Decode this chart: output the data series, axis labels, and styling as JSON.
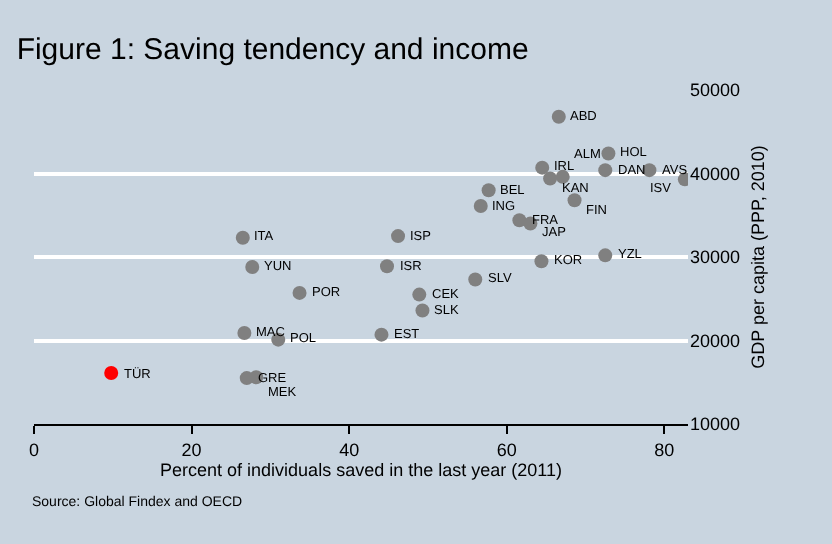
{
  "chart_data": {
    "type": "scatter",
    "title": "Figure 1: Saving tendency and income",
    "xlabel": "Percent of individuals saved in the last year (2011)",
    "ylabel": "GDP per capita (PPP, 2010)",
    "annotations": [
      "Source: Global Findex and OECD",
      {
        "text": "TÜR",
        "x": 9.8,
        "y": 16100
      },
      {
        "text": "GRE",
        "x": 27,
        "y": 15500
      },
      {
        "text": "MEK",
        "x": 28.2,
        "y": 15600
      },
      {
        "text": "MAC",
        "x": 26.7,
        "y": 20900
      },
      {
        "text": "POL",
        "x": 31,
        "y": 20100
      },
      {
        "text": "POR",
        "x": 33.7,
        "y": 25700
      },
      {
        "text": "YUN",
        "x": 27.7,
        "y": 28800
      },
      {
        "text": "ITA",
        "x": 26.5,
        "y": 32300
      },
      {
        "text": "ISP",
        "x": 46.2,
        "y": 32500
      },
      {
        "text": "ISR",
        "x": 44.8,
        "y": 28900
      },
      {
        "text": "EST",
        "x": 44.1,
        "y": 20700
      },
      {
        "text": "CEK",
        "x": 48.9,
        "y": 25500
      },
      {
        "text": "SLK",
        "x": 49.3,
        "y": 23600
      },
      {
        "text": "SLV",
        "x": 56,
        "y": 27300
      },
      {
        "text": "BEL",
        "x": 57.7,
        "y": 38000
      },
      {
        "text": "ING",
        "x": 56.7,
        "y": 36100
      },
      {
        "text": "FRA",
        "x": 61.6,
        "y": 34400
      },
      {
        "text": "JAP",
        "x": 63,
        "y": 34000
      },
      {
        "text": "KOR",
        "x": 64.4,
        "y": 29500
      },
      {
        "text": "ABD",
        "x": 66.6,
        "y": 46800
      },
      {
        "text": "IRL",
        "x": 64.5,
        "y": 40700
      },
      {
        "text": "KAN",
        "x": 65.5,
        "y": 39400
      },
      {
        "text": "ALM",
        "x": 67.1,
        "y": 39600
      },
      {
        "text": "HOL",
        "x": 72.9,
        "y": 42400
      },
      {
        "text": "DAN",
        "x": 72.5,
        "y": 40400
      },
      {
        "text": "YZL",
        "x": 72.5,
        "y": 30200
      },
      {
        "text": "FIN",
        "x": 68.6,
        "y": 36800
      },
      {
        "text": "AVS",
        "x": 78.1,
        "y": 40400
      },
      {
        "text": "ISV",
        "x": 82.6,
        "y": 39300
      }
    ],
    "xlim": [
      0,
      83
    ],
    "xticks": [
      0,
      20,
      40,
      60,
      80
    ],
    "ylim": [
      10000,
      50000
    ],
    "yticks": [
      10000,
      20000,
      30000,
      40000,
      50000
    ],
    "grid": "y",
    "marker": "circle",
    "legend": false,
    "series": [
      {
        "x": [
          9.8
        ],
        "values": [
          16100
        ],
        "color": "#ff0000"
      },
      {
        "x": [
          27,
          28.2,
          26.7,
          31,
          33.7,
          27.7,
          26.5,
          46.2,
          44.8,
          44.1,
          48.9,
          49.3,
          56,
          57.7,
          56.7,
          61.6,
          63,
          64.4,
          66.6,
          64.5,
          65.5,
          67.1,
          72.9,
          72.5,
          72.5,
          68.6,
          78.1,
          82.6
        ],
        "values": [
          15500,
          15600,
          20900,
          20100,
          25700,
          28800,
          32300,
          32500,
          28900,
          20700,
          25500,
          23600,
          27300,
          38000,
          36100,
          34400,
          34000,
          29500,
          46800,
          40700,
          39400,
          39600,
          42400,
          40400,
          30200,
          36800,
          40400,
          39300
        ],
        "color": "#808080"
      }
    ]
  }
}
